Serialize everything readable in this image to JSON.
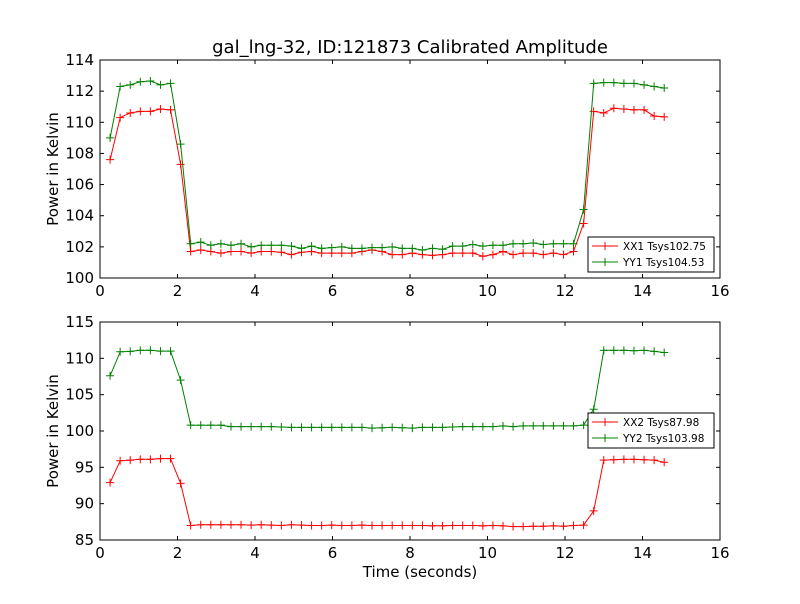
{
  "title": "gal_lng-32, ID:121873 Calibrated Amplitude",
  "colors": {
    "red": "#ff0000",
    "green": "#008000"
  },
  "chart_data": [
    {
      "type": "line",
      "ylabel": "Power in Kelvin",
      "xlabel": "",
      "xlim": [
        0,
        16
      ],
      "ylim": [
        100,
        114
      ],
      "xticks": [
        "0",
        "2",
        "4",
        "6",
        "8",
        "10",
        "12",
        "14",
        "16"
      ],
      "yticks": [
        "100",
        "102",
        "104",
        "106",
        "108",
        "110",
        "112",
        "114"
      ],
      "legend_position": "lower-right",
      "x": [
        0.26,
        0.52,
        0.78,
        1.04,
        1.3,
        1.56,
        1.82,
        2.08,
        2.34,
        2.6,
        2.86,
        3.12,
        3.38,
        3.64,
        3.9,
        4.16,
        4.42,
        4.68,
        4.94,
        5.2,
        5.46,
        5.72,
        5.98,
        6.24,
        6.5,
        6.76,
        7.02,
        7.28,
        7.54,
        7.8,
        8.06,
        8.32,
        8.58,
        8.84,
        9.1,
        9.36,
        9.62,
        9.88,
        10.14,
        10.4,
        10.66,
        10.92,
        11.18,
        11.44,
        11.7,
        11.96,
        12.22,
        12.48,
        12.74,
        13.0,
        13.26,
        13.52,
        13.78,
        14.04,
        14.3,
        14.56
      ],
      "series": [
        {
          "name": "XX1 Tsys102.75",
          "color": "#ff0000",
          "values": [
            107.6,
            110.3,
            110.6,
            110.7,
            110.7,
            110.85,
            110.8,
            107.3,
            101.7,
            101.8,
            101.7,
            101.6,
            101.7,
            101.7,
            101.6,
            101.7,
            101.7,
            101.65,
            101.5,
            101.65,
            101.7,
            101.6,
            101.6,
            101.6,
            101.6,
            101.7,
            101.8,
            101.7,
            101.5,
            101.5,
            101.6,
            101.5,
            101.45,
            101.5,
            101.6,
            101.6,
            101.6,
            101.4,
            101.5,
            101.7,
            101.5,
            101.6,
            101.6,
            101.5,
            101.6,
            101.5,
            101.7,
            103.5,
            110.7,
            110.6,
            110.9,
            110.85,
            110.8,
            110.8,
            110.4,
            110.35
          ]
        },
        {
          "name": "YY1 Tsys104.53",
          "color": "#008000",
          "values": [
            109.0,
            112.3,
            112.4,
            112.6,
            112.65,
            112.4,
            112.5,
            108.6,
            102.2,
            102.3,
            102.1,
            102.2,
            102.1,
            102.2,
            102.0,
            102.1,
            102.1,
            102.1,
            102.05,
            101.9,
            102.05,
            101.9,
            101.95,
            102.0,
            101.9,
            101.9,
            101.95,
            101.95,
            102.0,
            101.9,
            101.9,
            101.8,
            101.9,
            101.85,
            102.05,
            102.05,
            102.15,
            102.05,
            102.1,
            102.1,
            102.2,
            102.2,
            102.25,
            102.15,
            102.2,
            102.2,
            102.2,
            104.4,
            112.5,
            112.55,
            112.55,
            112.5,
            112.5,
            112.4,
            112.3,
            112.2
          ]
        }
      ]
    },
    {
      "type": "line",
      "ylabel": "Power in Kelvin",
      "xlabel": "Time (seconds)",
      "xlim": [
        0,
        16
      ],
      "ylim": [
        85,
        115
      ],
      "xticks": [
        "0",
        "2",
        "4",
        "6",
        "8",
        "10",
        "12",
        "14",
        "16"
      ],
      "yticks": [
        "85",
        "90",
        "95",
        "100",
        "105",
        "110",
        "115"
      ],
      "legend_position": "center-right",
      "x": [
        0.26,
        0.52,
        0.78,
        1.04,
        1.3,
        1.56,
        1.82,
        2.08,
        2.34,
        2.6,
        2.86,
        3.12,
        3.38,
        3.64,
        3.9,
        4.16,
        4.42,
        4.68,
        4.94,
        5.2,
        5.46,
        5.72,
        5.98,
        6.24,
        6.5,
        6.76,
        7.02,
        7.28,
        7.54,
        7.8,
        8.06,
        8.32,
        8.58,
        8.84,
        9.1,
        9.36,
        9.62,
        9.88,
        10.14,
        10.4,
        10.66,
        10.92,
        11.18,
        11.44,
        11.7,
        11.96,
        12.22,
        12.48,
        12.74,
        13.0,
        13.26,
        13.52,
        13.78,
        14.04,
        14.3,
        14.56
      ],
      "series": [
        {
          "name": "XX2 Tsys87.98",
          "color": "#ff0000",
          "values": [
            92.9,
            95.9,
            96.0,
            96.1,
            96.1,
            96.2,
            96.2,
            92.8,
            87.0,
            87.1,
            87.1,
            87.1,
            87.1,
            87.1,
            87.05,
            87.1,
            87.05,
            87.0,
            87.1,
            87.05,
            87.0,
            87.0,
            87.05,
            87.0,
            87.0,
            87.05,
            87.0,
            87.0,
            87.0,
            87.0,
            87.0,
            87.0,
            86.95,
            86.95,
            87.0,
            87.0,
            87.0,
            86.95,
            87.0,
            86.95,
            86.85,
            86.85,
            86.9,
            86.9,
            86.95,
            86.9,
            87.0,
            87.05,
            89.0,
            96.0,
            96.05,
            96.1,
            96.1,
            96.05,
            96.0,
            95.7
          ]
        },
        {
          "name": "YY2 Tsys103.98",
          "color": "#008000",
          "values": [
            107.6,
            110.9,
            110.95,
            111.1,
            111.1,
            111.0,
            111.0,
            107.0,
            100.8,
            100.8,
            100.8,
            100.8,
            100.6,
            100.6,
            100.6,
            100.6,
            100.6,
            100.55,
            100.5,
            100.5,
            100.5,
            100.5,
            100.5,
            100.5,
            100.5,
            100.5,
            100.4,
            100.45,
            100.5,
            100.45,
            100.4,
            100.5,
            100.5,
            100.5,
            100.55,
            100.6,
            100.6,
            100.6,
            100.6,
            100.7,
            100.6,
            100.7,
            100.7,
            100.7,
            100.7,
            100.7,
            100.7,
            100.8,
            103.0,
            111.1,
            111.1,
            111.1,
            111.05,
            111.1,
            110.95,
            110.8
          ]
        }
      ]
    }
  ]
}
